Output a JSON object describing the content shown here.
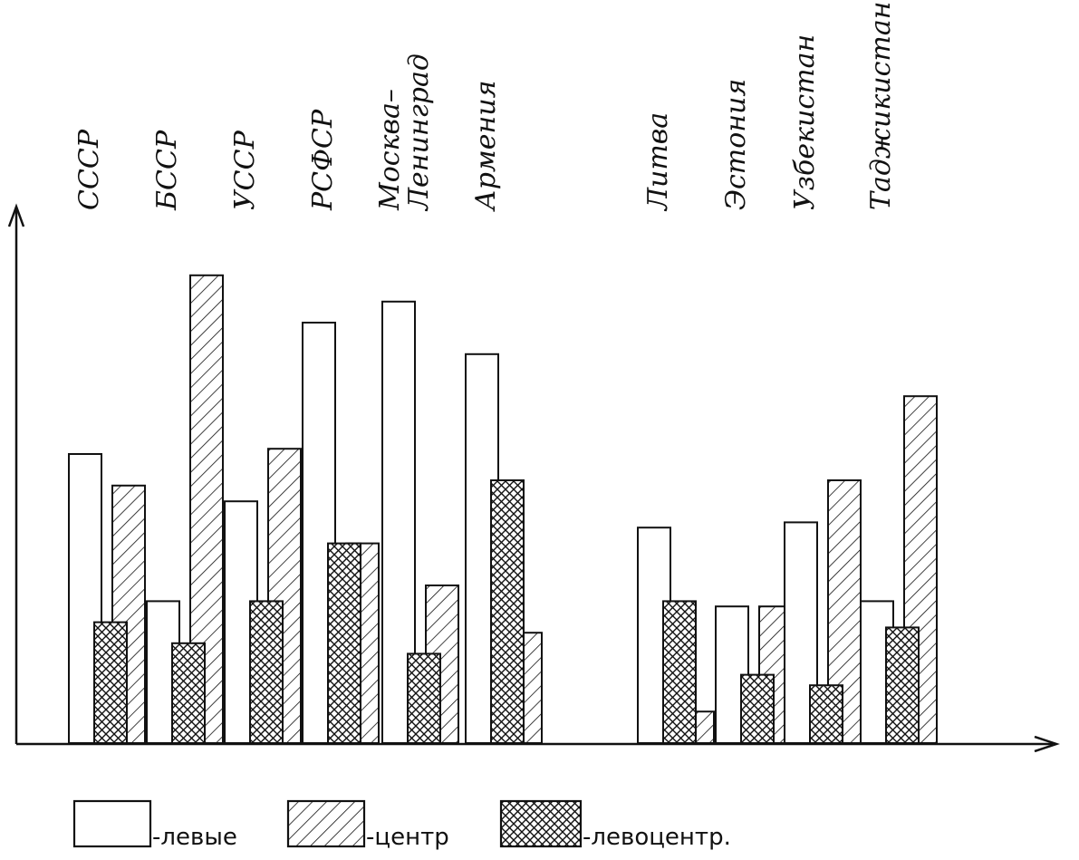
{
  "chart_data": {
    "type": "bar",
    "title": "",
    "xlabel": "",
    "ylabel": "",
    "ylim": [
      0,
      100
    ],
    "grid": false,
    "legend_position": "bottom",
    "categories": [
      "СССР",
      "БССР",
      "УССР",
      "РСФСР",
      "Москва–Ленинград",
      "Армения",
      "Литва",
      "Эстония",
      "Узбекистан",
      "Таджикистан"
    ],
    "series": [
      {
        "name": "-левые",
        "pattern": "none",
        "values": [
          55,
          27,
          46,
          80,
          84,
          74,
          41,
          26,
          42,
          27
        ]
      },
      {
        "name": "-центр",
        "pattern": "hatch",
        "values": [
          49,
          89,
          56,
          38,
          30,
          21,
          6,
          26,
          50,
          66
        ]
      },
      {
        "name": "-левоцентр.",
        "pattern": "crosshatch",
        "values": [
          23,
          19,
          27,
          38,
          17,
          50,
          27,
          13,
          11,
          22
        ]
      }
    ],
    "colors": {
      "ink": "#111111",
      "background": "#ffffff"
    }
  }
}
